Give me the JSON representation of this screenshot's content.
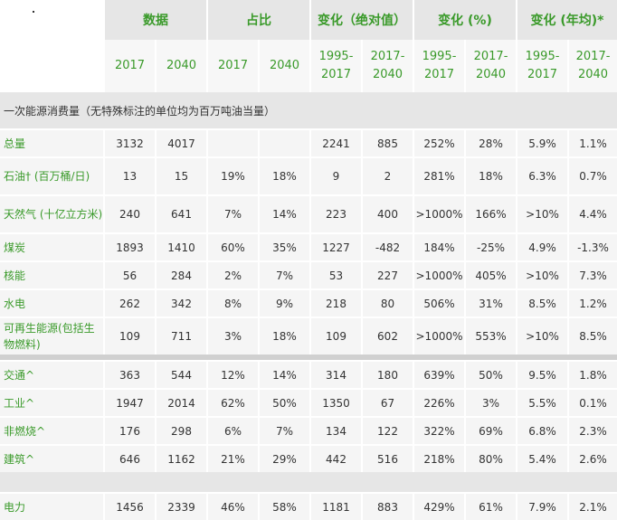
{
  "header": {
    "groups": [
      "数据",
      "占比",
      "变化（绝对值）",
      "变化 (%)",
      "变化 (年均)*"
    ],
    "subheaders": [
      [
        "2017"
      ],
      [
        "2040"
      ],
      [
        "2017"
      ],
      [
        "2040"
      ],
      [
        "1995-",
        "2017"
      ],
      [
        "2017-",
        "2040"
      ],
      [
        "1995-",
        "2017"
      ],
      [
        "2017-",
        "2040"
      ],
      [
        "1995-",
        "2017"
      ],
      [
        "2017-",
        "2040"
      ]
    ]
  },
  "section_title": "一次能源消费量（无特殊标注的单位均为百万吨油当量）",
  "rows": [
    {
      "label": "总量",
      "values": [
        "3132",
        "4017",
        "",
        "",
        "2241",
        "885",
        "252%",
        "28%",
        "5.9%",
        "1.1%"
      ]
    },
    {
      "label": "石油† (百万桶/日)",
      "values": [
        "13",
        "15",
        "19%",
        "18%",
        "9",
        "2",
        "281%",
        "18%",
        "6.3%",
        "0.7%"
      ]
    },
    {
      "label": "天然气 (十亿立方米)",
      "values": [
        "240",
        "641",
        "7%",
        "14%",
        "223",
        "400",
        ">1000%",
        "166%",
        ">10%",
        "4.4%"
      ]
    },
    {
      "label": "煤炭",
      "values": [
        "1893",
        "1410",
        "60%",
        "35%",
        "1227",
        "-482",
        "184%",
        "-25%",
        "4.9%",
        "-1.3%"
      ]
    },
    {
      "label": "核能",
      "values": [
        "56",
        "284",
        "2%",
        "7%",
        "53",
        "227",
        ">1000%",
        "405%",
        ">10%",
        "7.3%"
      ]
    },
    {
      "label": "水电",
      "values": [
        "262",
        "342",
        "8%",
        "9%",
        "218",
        "80",
        "506%",
        "31%",
        "8.5%",
        "1.2%"
      ]
    },
    {
      "label": "可再生能源(包括生物燃料)",
      "values": [
        "109",
        "711",
        "3%",
        "18%",
        "109",
        "602",
        ">1000%",
        "553%",
        ">10%",
        "8.5%"
      ]
    }
  ],
  "rows2": [
    {
      "label": "交通^",
      "values": [
        "363",
        "544",
        "12%",
        "14%",
        "314",
        "180",
        "639%",
        "50%",
        "9.5%",
        "1.8%"
      ]
    },
    {
      "label": "工业^",
      "values": [
        "1947",
        "2014",
        "62%",
        "50%",
        "1350",
        "67",
        "226%",
        "3%",
        "5.5%",
        "0.1%"
      ]
    },
    {
      "label": "非燃烧^",
      "values": [
        "176",
        "298",
        "6%",
        "7%",
        "134",
        "122",
        "322%",
        "69%",
        "6.8%",
        "2.3%"
      ]
    },
    {
      "label": "建筑^",
      "values": [
        "646",
        "1162",
        "21%",
        "29%",
        "442",
        "516",
        "218%",
        "80%",
        "5.4%",
        "2.6%"
      ]
    }
  ],
  "rows3": [
    {
      "label": "电力",
      "values": [
        "1456",
        "2339",
        "46%",
        "58%",
        "1181",
        "883",
        "429%",
        "61%",
        "7.9%",
        "2.1%"
      ]
    }
  ]
}
